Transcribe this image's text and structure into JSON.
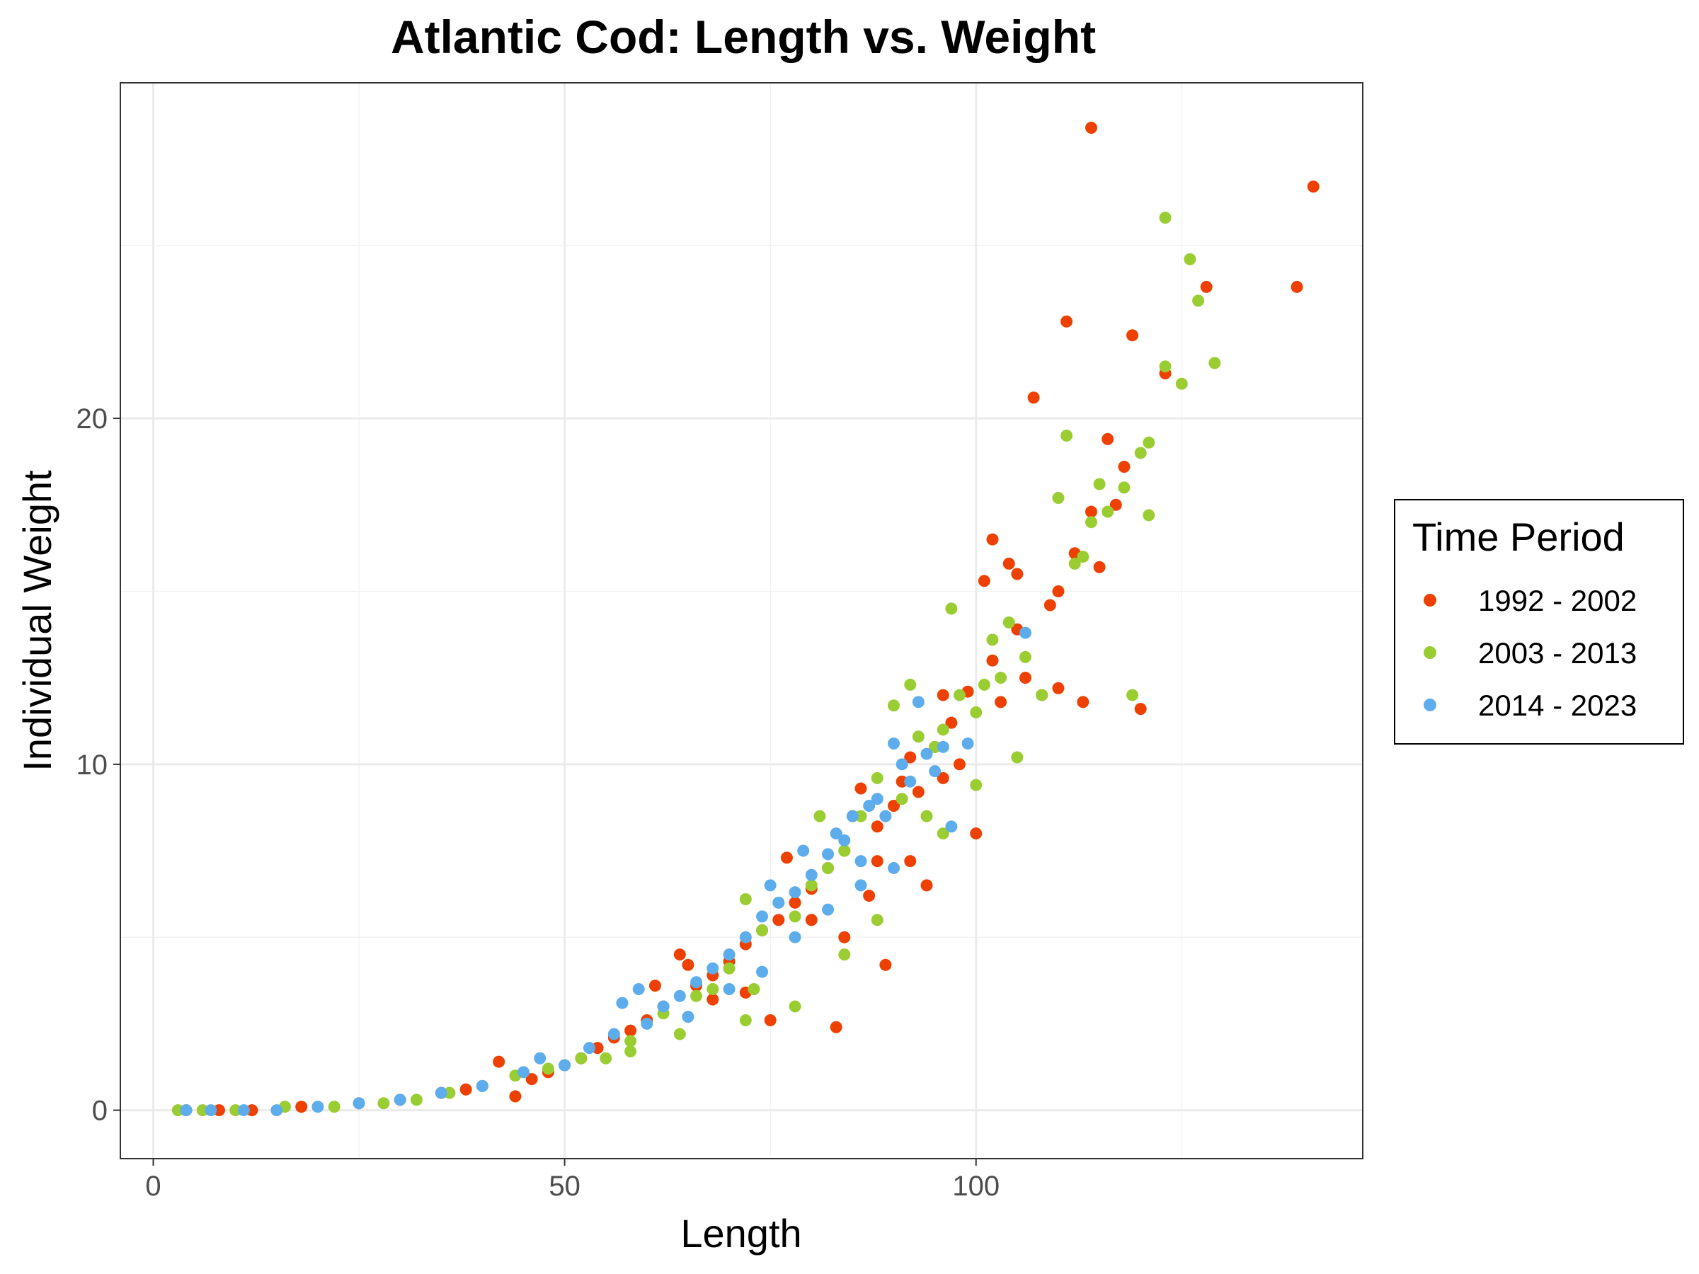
{
  "chart_data": {
    "type": "scatter",
    "title": "Atlantic Cod: Length vs. Weight",
    "xlabel": "Length",
    "ylabel": "Individual Weight",
    "xlim": [
      -4,
      147
    ],
    "ylim": [
      -1.4,
      29.7
    ],
    "x_ticks": [
      0,
      50,
      100
    ],
    "x_tick_labels": [
      "0",
      "50",
      "100"
    ],
    "y_ticks": [
      0,
      10,
      20
    ],
    "y_tick_labels": [
      "0",
      "10",
      "20"
    ],
    "x_minor_grid": [
      25,
      75,
      125
    ],
    "y_minor_grid": [
      5,
      15,
      25
    ],
    "grid": true,
    "legend": {
      "title": "Time Period",
      "position": "right",
      "entries": [
        "1992 - 2002",
        "2003 - 2013",
        "2014 - 2023"
      ]
    },
    "series": [
      {
        "name": "1992 - 2002",
        "color": "#EE4000",
        "points": [
          [
            4,
            0.0
          ],
          [
            8,
            0.0
          ],
          [
            12,
            0.0
          ],
          [
            18,
            0.1
          ],
          [
            25,
            0.2
          ],
          [
            30,
            0.3
          ],
          [
            35,
            0.5
          ],
          [
            38,
            0.6
          ],
          [
            40,
            0.7
          ],
          [
            42,
            1.4
          ],
          [
            44,
            0.4
          ],
          [
            46,
            0.9
          ],
          [
            48,
            1.1
          ],
          [
            50,
            1.3
          ],
          [
            52,
            1.5
          ],
          [
            54,
            1.8
          ],
          [
            56,
            2.1
          ],
          [
            58,
            2.3
          ],
          [
            60,
            2.6
          ],
          [
            61,
            3.6
          ],
          [
            62,
            3.0
          ],
          [
            64,
            4.5
          ],
          [
            65,
            4.2
          ],
          [
            66,
            3.6
          ],
          [
            68,
            3.9
          ],
          [
            70,
            4.3
          ],
          [
            72,
            4.8
          ],
          [
            74,
            5.2
          ],
          [
            75,
            2.6
          ],
          [
            76,
            5.5
          ],
          [
            77,
            7.3
          ],
          [
            78,
            6.0
          ],
          [
            80,
            6.4
          ],
          [
            82,
            7.0
          ],
          [
            83,
            2.4
          ],
          [
            84,
            7.5
          ],
          [
            85,
            8.5
          ],
          [
            86,
            9.3
          ],
          [
            87,
            6.2
          ],
          [
            88,
            8.2
          ],
          [
            89,
            4.2
          ],
          [
            90,
            8.8
          ],
          [
            91,
            9.5
          ],
          [
            92,
            7.2
          ],
          [
            93,
            9.2
          ],
          [
            94,
            6.5
          ],
          [
            95,
            10.5
          ],
          [
            96,
            9.6
          ],
          [
            97,
            11.2
          ],
          [
            98,
            10.0
          ],
          [
            99,
            12.1
          ],
          [
            100,
            8.0
          ],
          [
            101,
            15.3
          ],
          [
            102,
            16.5
          ],
          [
            103,
            11.8
          ],
          [
            104,
            15.8
          ],
          [
            105,
            15.5
          ],
          [
            106,
            12.5
          ],
          [
            107,
            20.6
          ],
          [
            108,
            12.0
          ],
          [
            109,
            14.6
          ],
          [
            110,
            15.0
          ],
          [
            111,
            22.8
          ],
          [
            112,
            16.1
          ],
          [
            113,
            11.8
          ],
          [
            114,
            17.3
          ],
          [
            115,
            15.7
          ],
          [
            116,
            19.4
          ],
          [
            117,
            17.5
          ],
          [
            118,
            18.6
          ],
          [
            119,
            22.4
          ],
          [
            120,
            11.6
          ],
          [
            123,
            21.3
          ],
          [
            128,
            23.8
          ],
          [
            139,
            23.8
          ],
          [
            141,
            26.7
          ],
          [
            114,
            28.4
          ],
          [
            110,
            12.2
          ],
          [
            105,
            13.9
          ],
          [
            102,
            13.0
          ],
          [
            96,
            12.0
          ],
          [
            92,
            10.2
          ],
          [
            88,
            7.2
          ],
          [
            84,
            5.0
          ],
          [
            80,
            5.5
          ],
          [
            72,
            3.4
          ],
          [
            68,
            3.2
          ]
        ]
      },
      {
        "name": "2003 - 2013",
        "color": "#9ACD32",
        "points": [
          [
            3,
            0.0
          ],
          [
            6,
            0.0
          ],
          [
            10,
            0.0
          ],
          [
            16,
            0.1
          ],
          [
            22,
            0.1
          ],
          [
            28,
            0.2
          ],
          [
            32,
            0.3
          ],
          [
            36,
            0.5
          ],
          [
            40,
            0.7
          ],
          [
            44,
            1.0
          ],
          [
            48,
            1.2
          ],
          [
            52,
            1.5
          ],
          [
            55,
            1.5
          ],
          [
            58,
            2.0
          ],
          [
            62,
            2.8
          ],
          [
            66,
            3.3
          ],
          [
            68,
            3.5
          ],
          [
            70,
            4.1
          ],
          [
            72,
            6.1
          ],
          [
            73,
            3.5
          ],
          [
            74,
            5.2
          ],
          [
            76,
            6.0
          ],
          [
            78,
            5.6
          ],
          [
            80,
            6.5
          ],
          [
            81,
            8.5
          ],
          [
            82,
            7.0
          ],
          [
            84,
            7.5
          ],
          [
            86,
            8.5
          ],
          [
            88,
            9.6
          ],
          [
            90,
            11.7
          ],
          [
            91,
            9.0
          ],
          [
            92,
            12.3
          ],
          [
            93,
            10.8
          ],
          [
            94,
            8.5
          ],
          [
            95,
            10.5
          ],
          [
            96,
            11.0
          ],
          [
            97,
            14.5
          ],
          [
            98,
            12.0
          ],
          [
            100,
            11.5
          ],
          [
            101,
            12.3
          ],
          [
            102,
            13.6
          ],
          [
            103,
            12.5
          ],
          [
            104,
            14.1
          ],
          [
            105,
            10.2
          ],
          [
            106,
            13.1
          ],
          [
            108,
            12.0
          ],
          [
            110,
            17.7
          ],
          [
            111,
            19.5
          ],
          [
            112,
            15.8
          ],
          [
            113,
            16.0
          ],
          [
            114,
            17.0
          ],
          [
            115,
            18.1
          ],
          [
            116,
            17.3
          ],
          [
            118,
            18.0
          ],
          [
            119,
            12.0
          ],
          [
            120,
            19.0
          ],
          [
            121,
            19.3
          ],
          [
            121,
            17.2
          ],
          [
            123,
            21.5
          ],
          [
            123,
            25.8
          ],
          [
            125,
            21.0
          ],
          [
            126,
            24.6
          ],
          [
            127,
            23.4
          ],
          [
            129,
            21.6
          ],
          [
            88,
            5.5
          ],
          [
            84,
            4.5
          ],
          [
            78,
            3.0
          ],
          [
            72,
            2.6
          ],
          [
            64,
            2.2
          ],
          [
            58,
            1.7
          ],
          [
            100,
            9.4
          ],
          [
            96,
            8.0
          ]
        ]
      },
      {
        "name": "2014 - 2023",
        "color": "#5DADEC",
        "points": [
          [
            4,
            0.0
          ],
          [
            7,
            0.0
          ],
          [
            11,
            0.0
          ],
          [
            15,
            0.0
          ],
          [
            20,
            0.1
          ],
          [
            25,
            0.2
          ],
          [
            30,
            0.3
          ],
          [
            35,
            0.5
          ],
          [
            40,
            0.7
          ],
          [
            45,
            1.1
          ],
          [
            47,
            1.5
          ],
          [
            50,
            1.3
          ],
          [
            53,
            1.8
          ],
          [
            56,
            2.2
          ],
          [
            57,
            3.1
          ],
          [
            59,
            3.5
          ],
          [
            60,
            2.5
          ],
          [
            62,
            3.0
          ],
          [
            64,
            3.3
          ],
          [
            66,
            3.7
          ],
          [
            68,
            4.1
          ],
          [
            70,
            4.5
          ],
          [
            72,
            5.0
          ],
          [
            74,
            5.6
          ],
          [
            75,
            6.5
          ],
          [
            76,
            6.0
          ],
          [
            78,
            6.3
          ],
          [
            79,
            7.5
          ],
          [
            80,
            6.8
          ],
          [
            82,
            7.4
          ],
          [
            83,
            8.0
          ],
          [
            84,
            7.8
          ],
          [
            85,
            8.5
          ],
          [
            86,
            7.2
          ],
          [
            87,
            8.8
          ],
          [
            88,
            9.0
          ],
          [
            89,
            8.5
          ],
          [
            90,
            10.6
          ],
          [
            91,
            10.0
          ],
          [
            92,
            9.5
          ],
          [
            93,
            11.8
          ],
          [
            94,
            10.3
          ],
          [
            95,
            9.8
          ],
          [
            96,
            10.5
          ],
          [
            97,
            8.2
          ],
          [
            99,
            10.6
          ],
          [
            106,
            13.8
          ],
          [
            70,
            3.5
          ],
          [
            74,
            4.0
          ],
          [
            78,
            5.0
          ],
          [
            82,
            5.8
          ],
          [
            86,
            6.5
          ],
          [
            90,
            7.0
          ],
          [
            65,
            2.7
          ]
        ]
      }
    ]
  }
}
